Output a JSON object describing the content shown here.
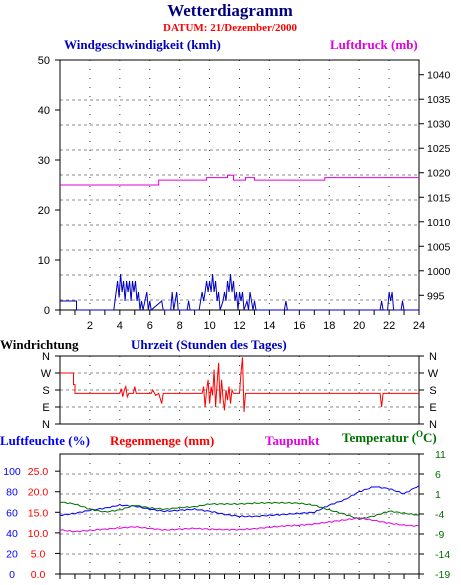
{
  "header": {
    "title": "Wetterdiagramm",
    "date": "DATUM: 21/Dezember/2000"
  },
  "colors": {
    "wind": "#0000c0",
    "pressure": "#e000e0",
    "direction": "#ff0000",
    "humidity": "#0000ff",
    "rain": "#ff0000",
    "dewpoint": "#e000e0",
    "temperature": "#007000",
    "title": "#000080",
    "grid": "#666666"
  },
  "chart_data": [
    {
      "type": "line",
      "xlabel": "Uhrzeit (Stunden des Tages)",
      "xlim": [
        0,
        24
      ],
      "x_ticks": [
        2,
        4,
        6,
        8,
        10,
        12,
        14,
        16,
        18,
        20,
        22,
        24
      ],
      "axes": {
        "left": {
          "label": "Windgeschwindigkeit (kmh)",
          "lim": [
            0,
            50
          ],
          "ticks": [
            0,
            10,
            20,
            30,
            40,
            50
          ]
        },
        "right": {
          "label": "Luftdruck (mb)",
          "lim": [
            992,
            1043
          ],
          "ticks": [
            995,
            1000,
            1005,
            1010,
            1015,
            1020,
            1025,
            1030,
            1035,
            1040
          ]
        }
      },
      "grid": true,
      "series": [
        {
          "name": "Windgeschwindigkeit (kmh)",
          "axis": "left",
          "points": [
            [
              0,
              1.8
            ],
            [
              1.1,
              1.8
            ],
            [
              1.1,
              0
            ],
            [
              3.6,
              0
            ],
            [
              3.75,
              3.5
            ],
            [
              3.85,
              5.8
            ],
            [
              3.95,
              2.5
            ],
            [
              4.05,
              7.2
            ],
            [
              4.15,
              3.6
            ],
            [
              4.25,
              5.8
            ],
            [
              4.35,
              1.8
            ],
            [
              4.45,
              5.8
            ],
            [
              4.55,
              3.6
            ],
            [
              4.65,
              5.8
            ],
            [
              4.75,
              1.8
            ],
            [
              4.85,
              5.8
            ],
            [
              4.95,
              3.6
            ],
            [
              5.05,
              5.8
            ],
            [
              5.15,
              1.8
            ],
            [
              5.25,
              3.6
            ],
            [
              5.35,
              0
            ],
            [
              5.45,
              1.8
            ],
            [
              5.55,
              0
            ],
            [
              5.8,
              3.6
            ],
            [
              5.9,
              0
            ],
            [
              6.0,
              1.8
            ],
            [
              6.1,
              0
            ],
            [
              6.8,
              1.8
            ],
            [
              6.9,
              0
            ],
            [
              7.4,
              0
            ],
            [
              7.5,
              3.6
            ],
            [
              7.6,
              0
            ],
            [
              7.7,
              1.8
            ],
            [
              7.8,
              3.6
            ],
            [
              7.9,
              0
            ],
            [
              8.5,
              0
            ],
            [
              8.6,
              1.8
            ],
            [
              8.7,
              0
            ],
            [
              9.3,
              0
            ],
            [
              9.4,
              1.8
            ],
            [
              9.5,
              3.6
            ],
            [
              9.6,
              1.8
            ],
            [
              9.7,
              3.6
            ],
            [
              9.8,
              5.8
            ],
            [
              9.9,
              3.6
            ],
            [
              10.0,
              5.8
            ],
            [
              10.1,
              3.6
            ],
            [
              10.2,
              7.2
            ],
            [
              10.3,
              3.6
            ],
            [
              10.4,
              5.8
            ],
            [
              10.5,
              1.8
            ],
            [
              10.6,
              3.6
            ],
            [
              10.7,
              0
            ],
            [
              10.9,
              1.8
            ],
            [
              11.0,
              3.6
            ],
            [
              11.1,
              1.8
            ],
            [
              11.2,
              5.8
            ],
            [
              11.3,
              3.6
            ],
            [
              11.4,
              7.2
            ],
            [
              11.5,
              3.6
            ],
            [
              11.6,
              5.8
            ],
            [
              11.7,
              1.8
            ],
            [
              11.8,
              3.6
            ],
            [
              11.9,
              0
            ],
            [
              12.0,
              3.6
            ],
            [
              12.1,
              1.8
            ],
            [
              12.2,
              3.6
            ],
            [
              12.3,
              0
            ],
            [
              12.5,
              1.8
            ],
            [
              12.6,
              0
            ],
            [
              12.7,
              3.6
            ],
            [
              12.8,
              1.8
            ],
            [
              12.9,
              0
            ],
            [
              13.0,
              1.8
            ],
            [
              13.1,
              0
            ],
            [
              15.0,
              0
            ],
            [
              15.1,
              1.8
            ],
            [
              15.2,
              0
            ],
            [
              21.4,
              0
            ],
            [
              21.5,
              1.8
            ],
            [
              21.6,
              0
            ],
            [
              21.9,
              0
            ],
            [
              22.0,
              3.6
            ],
            [
              22.1,
              1.8
            ],
            [
              22.2,
              3.6
            ],
            [
              22.3,
              0
            ],
            [
              22.8,
              0
            ],
            [
              22.9,
              1.8
            ],
            [
              23.0,
              0
            ],
            [
              24,
              0
            ]
          ]
        },
        {
          "name": "Luftdruck (mb)",
          "axis": "right",
          "points": [
            [
              0,
              1017.5
            ],
            [
              6.6,
              1017.5
            ],
            [
              6.6,
              1018.5
            ],
            [
              9.8,
              1018.5
            ],
            [
              9.8,
              1019.0
            ],
            [
              11.2,
              1019.0
            ],
            [
              11.2,
              1019.5
            ],
            [
              11.6,
              1019.5
            ],
            [
              11.6,
              1018.5
            ],
            [
              12.4,
              1018.5
            ],
            [
              12.4,
              1019.0
            ],
            [
              13.0,
              1019.0
            ],
            [
              13.0,
              1018.5
            ],
            [
              17.7,
              1018.5
            ],
            [
              17.7,
              1019.0
            ],
            [
              24,
              1019.0
            ]
          ]
        }
      ]
    },
    {
      "type": "line",
      "title": "Windrichtung",
      "xlim": [
        0,
        24
      ],
      "y_categories": [
        "N",
        "W",
        "S",
        "E",
        "N"
      ],
      "grid": true,
      "series": [
        {
          "name": "Windrichtung",
          "points": [
            [
              0,
              0.25
            ],
            [
              0.9,
              0.25
            ],
            [
              0.9,
              0.42
            ],
            [
              1.0,
              0.42
            ],
            [
              1.0,
              0.55
            ],
            [
              4.0,
              0.55
            ],
            [
              4.1,
              0.48
            ],
            [
              4.2,
              0.6
            ],
            [
              4.3,
              0.5
            ],
            [
              4.4,
              0.45
            ],
            [
              4.5,
              0.6
            ],
            [
              4.6,
              0.55
            ],
            [
              4.9,
              0.55
            ],
            [
              5.0,
              0.45
            ],
            [
              5.1,
              0.55
            ],
            [
              6.1,
              0.55
            ],
            [
              6.2,
              0.5
            ],
            [
              6.4,
              0.58
            ],
            [
              6.6,
              0.55
            ],
            [
              6.8,
              0.7
            ],
            [
              6.9,
              0.55
            ],
            [
              9.5,
              0.55
            ],
            [
              9.6,
              0.45
            ],
            [
              9.7,
              0.75
            ],
            [
              9.8,
              0.5
            ],
            [
              9.9,
              0.35
            ],
            [
              10.0,
              0.7
            ],
            [
              10.1,
              0.45
            ],
            [
              10.2,
              0.58
            ],
            [
              10.3,
              0.2
            ],
            [
              10.4,
              0.75
            ],
            [
              10.5,
              0.4
            ],
            [
              10.6,
              0.1
            ],
            [
              10.7,
              0.7
            ],
            [
              10.8,
              0.35
            ],
            [
              10.9,
              0.62
            ],
            [
              11.0,
              0.8
            ],
            [
              11.1,
              0.5
            ],
            [
              11.2,
              0.65
            ],
            [
              11.3,
              0.45
            ],
            [
              11.4,
              0.7
            ],
            [
              11.5,
              0.5
            ],
            [
              11.6,
              0.55
            ],
            [
              12.0,
              0.55
            ],
            [
              12.1,
              0.25
            ],
            [
              12.2,
              0.02
            ],
            [
              12.3,
              0.82
            ],
            [
              12.4,
              0.55
            ],
            [
              21.4,
              0.55
            ],
            [
              21.5,
              0.75
            ],
            [
              21.6,
              0.55
            ],
            [
              24,
              0.55
            ]
          ]
        }
      ]
    },
    {
      "type": "line",
      "xlim": [
        0,
        24
      ],
      "axes": {
        "left_outer": {
          "label": "Luftfeuchte (%)",
          "lim": [
            0,
            116.7
          ],
          "ticks": [
            0,
            20,
            40,
            60,
            80,
            100
          ]
        },
        "left_inner": {
          "label": "Regenmenge (mm)",
          "lim": [
            0,
            29.2
          ],
          "ticks": [
            "0.0",
            "5.0",
            "10.0",
            "15.0",
            "20.0",
            "25.0"
          ]
        },
        "right": {
          "label": "Temperatur (",
          "unit_label": "O",
          "unit_suffix": "C)",
          "lim": [
            -19,
            11
          ],
          "ticks": [
            -19,
            -14,
            -9,
            -4,
            1,
            6,
            11
          ]
        }
      },
      "legend_extra": "Taupunkt",
      "grid": true,
      "series": [
        {
          "name": "Luftfeuchte (%)",
          "axis": "left_outer",
          "points": [
            [
              0,
              57
            ],
            [
              1,
              59
            ],
            [
              2,
              62
            ],
            [
              3,
              64
            ],
            [
              4,
              67
            ],
            [
              5,
              66
            ],
            [
              6,
              63
            ],
            [
              7,
              61
            ],
            [
              8,
              62
            ],
            [
              9,
              63
            ],
            [
              10,
              61
            ],
            [
              11,
              58
            ],
            [
              12,
              56
            ],
            [
              13,
              56
            ],
            [
              14,
              57
            ],
            [
              15,
              58
            ],
            [
              16,
              59
            ],
            [
              17,
              60
            ],
            [
              18,
              67
            ],
            [
              19,
              72
            ],
            [
              20,
              80
            ],
            [
              21,
              85
            ],
            [
              22,
              83
            ],
            [
              23,
              78
            ],
            [
              24,
              86
            ]
          ]
        },
        {
          "name": "Temperatur",
          "axis": "right",
          "points": [
            [
              0,
              -1.0
            ],
            [
              1,
              -1.5
            ],
            [
              2,
              -2.8
            ],
            [
              3,
              -3.5
            ],
            [
              4,
              -3.0
            ],
            [
              5,
              -1.8
            ],
            [
              6,
              -2.5
            ],
            [
              7,
              -2.8
            ],
            [
              8,
              -2.4
            ],
            [
              9,
              -2.2
            ],
            [
              10,
              -1.5
            ],
            [
              11,
              -1.5
            ],
            [
              12,
              -1.5
            ],
            [
              13,
              -1.3
            ],
            [
              14,
              -1.2
            ],
            [
              15,
              -1.2
            ],
            [
              16,
              -1.3
            ],
            [
              17,
              -1.8
            ],
            [
              18,
              -3.0
            ],
            [
              19,
              -4.0
            ],
            [
              20,
              -5.3
            ],
            [
              21,
              -4.5
            ],
            [
              22,
              -3.3
            ],
            [
              23,
              -3.8
            ],
            [
              24,
              -4.3
            ]
          ]
        },
        {
          "name": "Taupunkt",
          "axis": "right",
          "points": [
            [
              0,
              -8.0
            ],
            [
              1,
              -8.4
            ],
            [
              2,
              -8.1
            ],
            [
              3,
              -7.8
            ],
            [
              4,
              -7.5
            ],
            [
              5,
              -7.2
            ],
            [
              6,
              -7.6
            ],
            [
              7,
              -8.0
            ],
            [
              8,
              -7.8
            ],
            [
              9,
              -7.6
            ],
            [
              10,
              -7.8
            ],
            [
              11,
              -7.9
            ],
            [
              12,
              -7.9
            ],
            [
              13,
              -7.7
            ],
            [
              14,
              -7.3
            ],
            [
              15,
              -7.0
            ],
            [
              16,
              -6.8
            ],
            [
              17,
              -6.5
            ],
            [
              18,
              -6.0
            ],
            [
              19,
              -5.5
            ],
            [
              20,
              -5.0
            ],
            [
              21,
              -5.6
            ],
            [
              22,
              -6.3
            ],
            [
              23,
              -6.8
            ],
            [
              24,
              -7.0
            ]
          ]
        }
      ]
    }
  ]
}
